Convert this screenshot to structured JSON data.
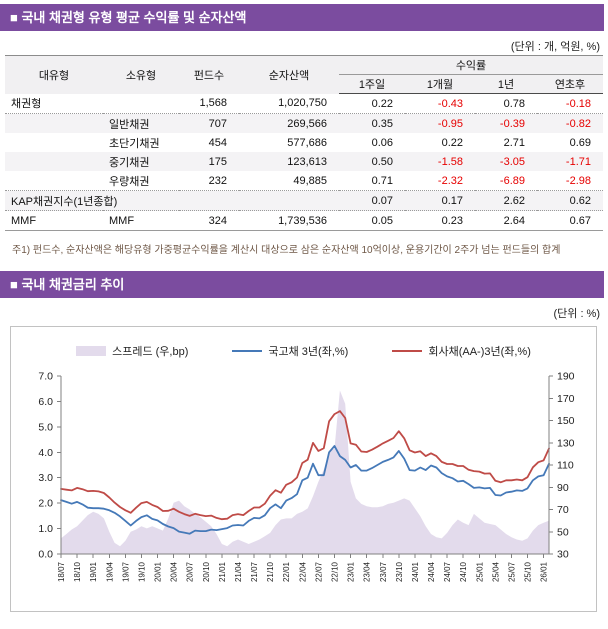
{
  "section1": {
    "title": "■ 국내 채권형 유형 평균 수익률 및 순자산액",
    "unit_note": "(단위 : 개, 억원, %)",
    "accent_color": "#7b4c9f"
  },
  "table": {
    "col_headers": [
      "대유형",
      "소유형",
      "펀드수",
      "순자산액"
    ],
    "yield_group_header": "수익률",
    "sub_headers": [
      "1주일",
      "1개월",
      "1년",
      "연초후"
    ],
    "rows": [
      {
        "cat": "채권형",
        "sub": "",
        "funds": "1,568",
        "nav": "1,020,750",
        "w1": "0.22",
        "m1": "-0.43",
        "y1": "0.78",
        "ytd": "-0.18",
        "dotted_below": true
      },
      {
        "cat": "",
        "sub": "일반채권",
        "funds": "707",
        "nav": "269,566",
        "w1": "0.35",
        "m1": "-0.95",
        "y1": "-0.39",
        "ytd": "-0.82",
        "dotted_below": false
      },
      {
        "cat": "",
        "sub": "초단기채권",
        "funds": "454",
        "nav": "577,686",
        "w1": "0.06",
        "m1": "0.22",
        "y1": "2.71",
        "ytd": "0.69",
        "dotted_below": false
      },
      {
        "cat": "",
        "sub": "중기채권",
        "funds": "175",
        "nav": "123,613",
        "w1": "0.50",
        "m1": "-1.58",
        "y1": "-3.05",
        "ytd": "-1.71",
        "dotted_below": false
      },
      {
        "cat": "",
        "sub": "우량채권",
        "funds": "232",
        "nav": "49,885",
        "w1": "0.71",
        "m1": "-2.32",
        "y1": "-6.89",
        "ytd": "-2.98",
        "dotted_below": true
      },
      {
        "cat": "KAP채권지수(1년종합)",
        "sub": "",
        "funds": "",
        "nav": "",
        "w1": "0.07",
        "m1": "0.17",
        "y1": "2.62",
        "ytd": "0.62",
        "dotted_below": true
      },
      {
        "cat": "MMF",
        "sub": "MMF",
        "funds": "324",
        "nav": "1,739,536",
        "w1": "0.05",
        "m1": "0.23",
        "y1": "2.64",
        "ytd": "0.67",
        "dotted_below": false
      }
    ],
    "negative_color": "#e60000"
  },
  "footnote": "주1) 펀드수, 순자산액은 해당유형 가중평균수익률을 계산시 대상으로 삼은 순자산액 10억이상, 운용기간이 2주가 넘는 펀드들의 합계",
  "section2": {
    "title": "■ 국내 채권금리 추이",
    "unit_note": "(단위 : %)"
  },
  "chart_data": {
    "type": "line",
    "title": "국내 채권금리 추이",
    "legend_position": "top",
    "grid": false,
    "x_is_monthly_from": "18/07",
    "x_tick_labels": [
      "18/07",
      "18/10",
      "19/01",
      "19/04",
      "19/07",
      "19/10",
      "20/01",
      "20/04",
      "20/07",
      "20/10",
      "21/01",
      "21/04",
      "21/07",
      "21/10",
      "22/01",
      "22/04",
      "22/07",
      "22/10",
      "23/01",
      "23/04",
      "23/07",
      "23/10",
      "24/01",
      "24/04",
      "24/07",
      "24/10",
      "25/01",
      "25/04",
      "25/07",
      "25/10",
      "26/01"
    ],
    "left_axis": {
      "min": 0.0,
      "max": 7.0,
      "step": 1.0,
      "label": "%"
    },
    "right_axis": {
      "min": 30,
      "max": 190,
      "step": 20,
      "label": "bp"
    },
    "series": [
      {
        "name": "스프레드 (우,bp)",
        "style": "area",
        "axis": "right",
        "color": "#e3dbec",
        "values": [
          44,
          48,
          52,
          55,
          60,
          65,
          68,
          66,
          62,
          50,
          40,
          37,
          42,
          50,
          52,
          55,
          53,
          55,
          53,
          51,
          62,
          76,
          78,
          73,
          70,
          66,
          63,
          59,
          55,
          48,
          39,
          37,
          41,
          43,
          41,
          39,
          41,
          43,
          46,
          49,
          56,
          61,
          62,
          62,
          66,
          68,
          71,
          82,
          95,
          106,
          122,
          125,
          177,
          165,
          95,
          80,
          75,
          73,
          72,
          72,
          73,
          75,
          76,
          78,
          80,
          78,
          71,
          64,
          55,
          48,
          45,
          44,
          49,
          56,
          61,
          58,
          56,
          66,
          62,
          58,
          57,
          56,
          52,
          48,
          45,
          43,
          42,
          44,
          51,
          56,
          58,
          60
        ]
      },
      {
        "name": "국고채 3년(좌,%)",
        "style": "line",
        "axis": "left",
        "color": "#4579b8",
        "values": [
          2.12,
          2.05,
          1.98,
          2.05,
          1.95,
          1.82,
          1.8,
          1.8,
          1.78,
          1.72,
          1.62,
          1.48,
          1.3,
          1.12,
          1.3,
          1.45,
          1.52,
          1.38,
          1.32,
          1.18,
          1.08,
          1.02,
          0.88,
          0.84,
          0.8,
          0.92,
          0.9,
          0.9,
          0.96,
          0.94,
          0.98,
          1.02,
          1.12,
          1.14,
          1.12,
          1.3,
          1.42,
          1.4,
          1.52,
          1.8,
          1.95,
          1.8,
          2.1,
          2.2,
          2.35,
          2.9,
          3.0,
          3.55,
          3.1,
          3.1,
          4.0,
          4.25,
          3.85,
          3.7,
          3.4,
          3.5,
          3.28,
          3.28,
          3.38,
          3.5,
          3.62,
          3.7,
          3.8,
          4.05,
          3.75,
          3.3,
          3.28,
          3.4,
          3.3,
          3.48,
          3.4,
          3.18,
          3.05,
          2.98,
          2.85,
          2.88,
          2.75,
          2.6,
          2.62,
          2.58,
          2.6,
          2.32,
          2.3,
          2.42,
          2.45,
          2.5,
          2.48,
          2.58,
          2.9,
          3.05,
          3.1,
          3.55
        ]
      },
      {
        "name": "회사채(AA-)3년(좌,%)",
        "style": "line",
        "axis": "left",
        "color": "#bf4b47",
        "values": [
          2.56,
          2.53,
          2.5,
          2.6,
          2.55,
          2.47,
          2.48,
          2.46,
          2.4,
          2.22,
          2.02,
          1.85,
          1.72,
          1.62,
          1.82,
          2.0,
          2.05,
          1.93,
          1.85,
          1.69,
          1.7,
          1.78,
          1.66,
          1.57,
          1.5,
          1.58,
          1.53,
          1.49,
          1.51,
          1.42,
          1.37,
          1.39,
          1.53,
          1.57,
          1.53,
          1.69,
          1.83,
          1.83,
          1.98,
          2.29,
          2.51,
          2.41,
          2.72,
          2.82,
          3.01,
          3.58,
          3.71,
          4.37,
          4.05,
          4.16,
          5.22,
          5.5,
          5.62,
          5.35,
          4.35,
          4.3,
          4.03,
          4.01,
          4.1,
          4.22,
          4.35,
          4.45,
          4.56,
          4.83,
          4.55,
          4.08,
          3.99,
          4.04,
          3.85,
          3.96,
          3.85,
          3.62,
          3.54,
          3.54,
          3.46,
          3.46,
          3.31,
          3.26,
          3.24,
          3.16,
          3.17,
          2.88,
          2.82,
          2.9,
          2.9,
          2.93,
          2.9,
          3.02,
          3.41,
          3.61,
          3.68,
          4.15
        ]
      }
    ]
  }
}
